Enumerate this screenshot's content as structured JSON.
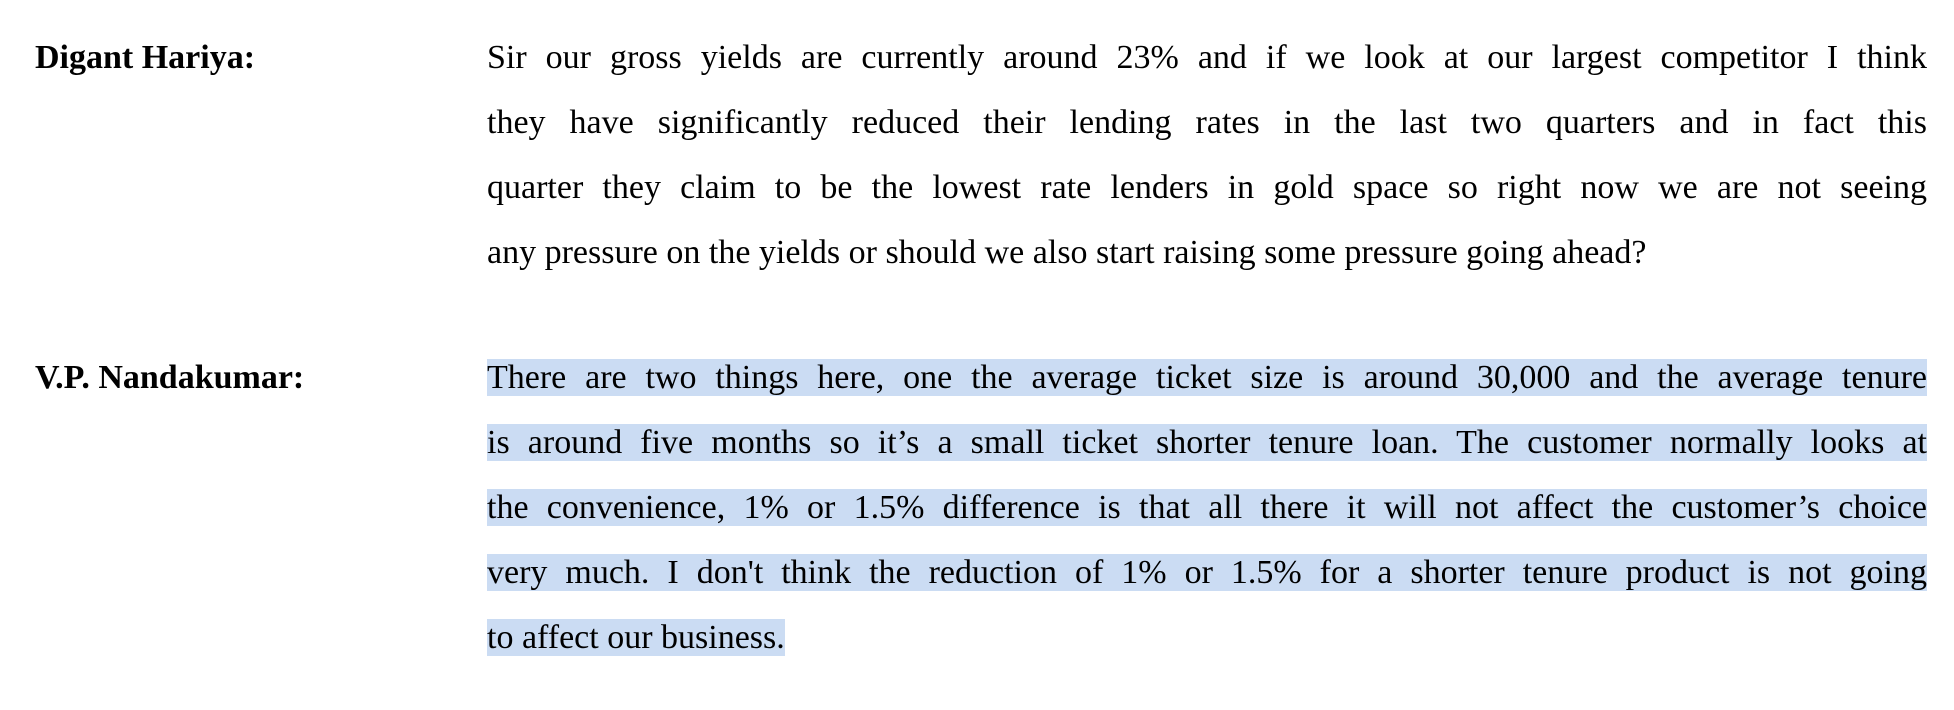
{
  "entries": [
    {
      "speaker": "Digant Hariya:",
      "lines": [
        "Sir our gross yields are currently around 23% and if we look at our largest competitor I think",
        "they have significantly reduced their lending rates in the last two quarters and in fact this",
        "quarter they claim to be the lowest rate lenders in gold space so right now we are not seeing",
        "any pressure on the yields or should we also start raising some pressure going ahead?"
      ]
    },
    {
      "speaker": "V.P. Nandakumar:",
      "lines": [
        "There are two things here, one the average ticket size is around 30,000 and the average tenure",
        "is around five months so it’s a small ticket shorter tenure loan. The customer normally looks at",
        "the convenience, 1% or 1.5% difference is that all there it will not affect the customer’s choice",
        "very much. I don't think the reduction of 1% or 1.5% for a shorter tenure product is not going",
        "to affect our business."
      ]
    }
  ]
}
